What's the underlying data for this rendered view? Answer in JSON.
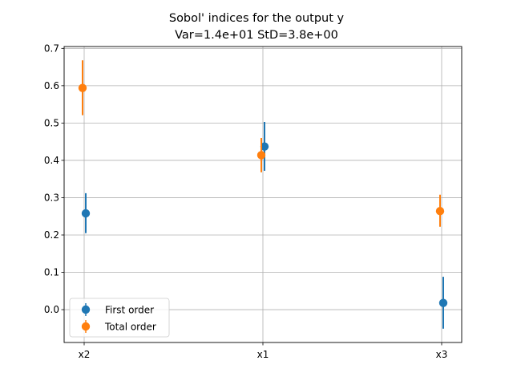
{
  "chart_data": {
    "type": "scatter",
    "title": "Sobol' indices for the output y",
    "subtitle": "Var=1.4e+01    StD=3.8e+00",
    "xlabel": "",
    "ylabel": "",
    "categories": [
      "x2",
      "x1",
      "x3"
    ],
    "ylim": [
      -0.088,
      0.705
    ],
    "yticks": [
      "0.0",
      "0.1",
      "0.2",
      "0.3",
      "0.4",
      "0.5",
      "0.6",
      "0.7"
    ],
    "grid": true,
    "legend_position": "lower-left",
    "series": [
      {
        "name": "First order",
        "color": "#1f77b4",
        "values": [
          0.258,
          0.437,
          0.018
        ],
        "lower": [
          0.205,
          0.372,
          -0.051
        ],
        "upper": [
          0.312,
          0.503,
          0.088
        ]
      },
      {
        "name": "Total order",
        "color": "#ff7f0e",
        "values": [
          0.594,
          0.414,
          0.264
        ],
        "lower": [
          0.521,
          0.368,
          0.222
        ],
        "upper": [
          0.668,
          0.46,
          0.308
        ]
      }
    ]
  }
}
